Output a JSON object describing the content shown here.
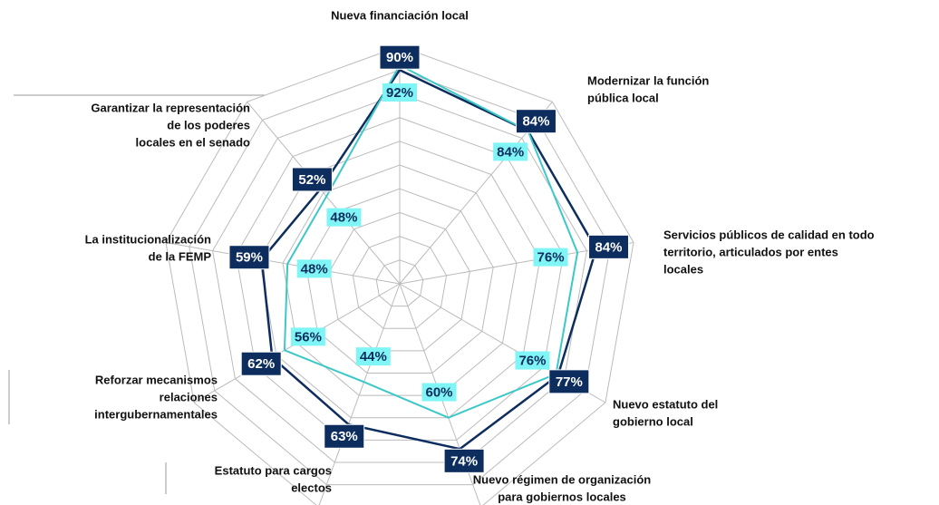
{
  "chart_data": {
    "type": "radar",
    "title": "Nueva financiación local",
    "categories": [
      null,
      [
        "Modernizar la función",
        "pública local"
      ],
      [
        "Servicios públicos de calidad en todo",
        "territorio, articulados por entes",
        "locales"
      ],
      [
        "Nuevo estatuto del",
        "gobierno local"
      ],
      [
        "Nuevo régimen de organización",
        "para gobiernos locales"
      ],
      [
        "Estatuto para cargos",
        "electos"
      ],
      [
        "Reforzar mecanismos",
        "relaciones",
        "intergubernamentales"
      ],
      [
        "La institucionalización",
        "de la FEMP"
      ],
      [
        "Garantizar la representación",
        "de los poderes",
        "locales en el senado"
      ]
    ],
    "series": [
      {
        "color": "#0d2d5e",
        "values": [
          90,
          84,
          84,
          77,
          74,
          63,
          62,
          59,
          52
        ],
        "value_labels": [
          "90%",
          "84%",
          "84%",
          "77%",
          "74%",
          "63%",
          "62%",
          "59%",
          "52%"
        ]
      },
      {
        "color": "#3cc8c8",
        "values": [
          92,
          84,
          76,
          76,
          60,
          44,
          56,
          48,
          48
        ],
        "value_labels": [
          "92%",
          "84%",
          "76%",
          "76%",
          "60%",
          "44%",
          "56%",
          "48%",
          "48%"
        ]
      }
    ],
    "ylim": [
      0,
      100
    ],
    "yticks": [
      0,
      10,
      20,
      30,
      40,
      50,
      60,
      70,
      80,
      90,
      100
    ],
    "grid": true
  }
}
